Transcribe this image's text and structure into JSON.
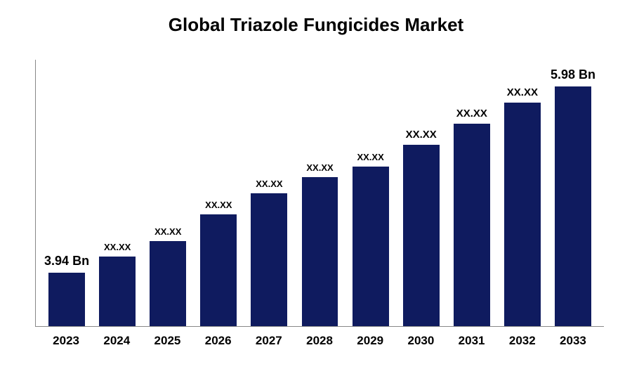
{
  "chart": {
    "type": "bar",
    "title": "Global Triazole Fungicides Market",
    "title_fontsize": 26,
    "title_fontweight": "bold",
    "title_color": "#000000",
    "background_color": "#ffffff",
    "bar_color": "#0f1b5f",
    "axis_color": "#888888",
    "categories": [
      "2023",
      "2024",
      "2025",
      "2026",
      "2027",
      "2028",
      "2029",
      "2030",
      "2031",
      "2032",
      "2033"
    ],
    "values": [
      20,
      26,
      32,
      42,
      50,
      56,
      60,
      68,
      76,
      84,
      90
    ],
    "value_labels": [
      "3.94 Bn",
      "XX.XX",
      "XX.XX",
      "XX.XX",
      "XX.XX",
      "XX.XX",
      "XX.XX",
      "XX.XX",
      "XX.XX",
      "XX.XX",
      "5.98 Bn"
    ],
    "value_label_fontsizes": [
      18,
      13,
      13,
      13,
      13,
      13,
      13,
      15,
      15,
      15,
      18
    ],
    "x_label_fontsize": 17,
    "x_label_fontweight": "bold",
    "bar_width_pct": 72,
    "ylim": [
      0,
      100
    ]
  }
}
